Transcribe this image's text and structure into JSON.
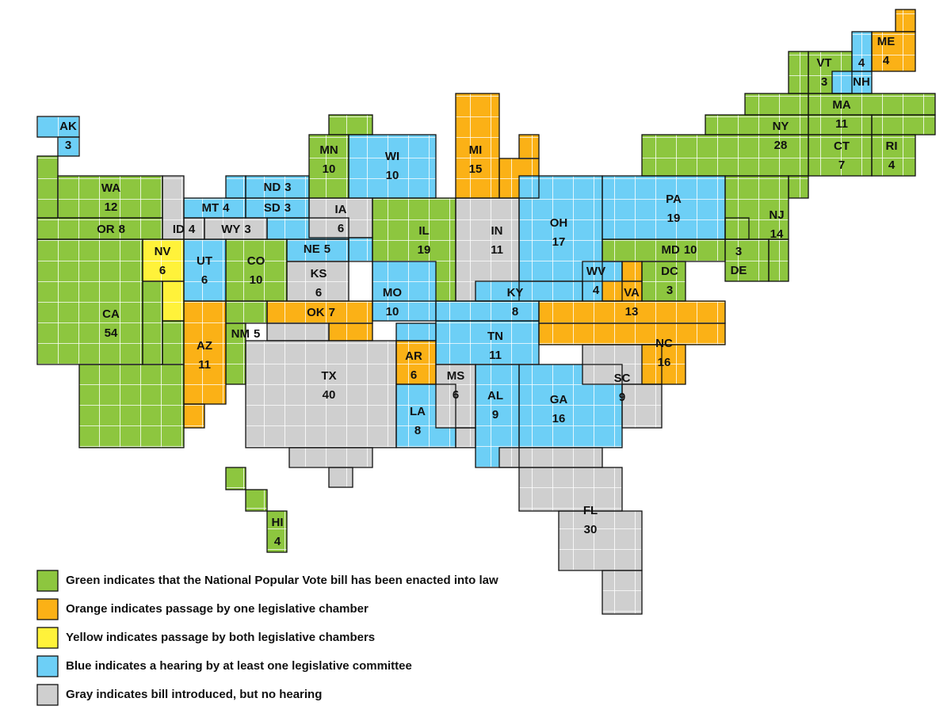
{
  "states": [
    {
      "abbr": "AK",
      "votes": 3,
      "color": "#6dcff6"
    },
    {
      "abbr": "WA",
      "votes": 12,
      "color": "#8dc63f"
    },
    {
      "abbr": "OR",
      "votes": 8,
      "color": "#8dc63f"
    },
    {
      "abbr": "CA",
      "votes": 54,
      "color": "#8dc63f"
    },
    {
      "abbr": "NV",
      "votes": 6,
      "color": "#fff23a"
    },
    {
      "abbr": "ID",
      "votes": 4,
      "color": "#cfcfcf"
    },
    {
      "abbr": "MT",
      "votes": 4,
      "color": "#6dcff6"
    },
    {
      "abbr": "WY",
      "votes": 3,
      "color": "#cfcfcf"
    },
    {
      "abbr": "UT",
      "votes": 6,
      "color": "#6dcff6"
    },
    {
      "abbr": "CO",
      "votes": 10,
      "color": "#8dc63f"
    },
    {
      "abbr": "NM",
      "votes": 5,
      "color": "#8dc63f"
    },
    {
      "abbr": "AZ",
      "votes": 11,
      "color": "#fbb116"
    },
    {
      "abbr": "ND",
      "votes": 3,
      "color": "#6dcff6"
    },
    {
      "abbr": "SD",
      "votes": 3,
      "color": "#6dcff6"
    },
    {
      "abbr": "NE",
      "votes": 5,
      "color": "#6dcff6"
    },
    {
      "abbr": "KS",
      "votes": 6,
      "color": "#cfcfcf"
    },
    {
      "abbr": "OK",
      "votes": 7,
      "color": "#fbb116"
    },
    {
      "abbr": "TX",
      "votes": 40,
      "color": "#cfcfcf"
    },
    {
      "abbr": "MN",
      "votes": 10,
      "color": "#8dc63f"
    },
    {
      "abbr": "WI",
      "votes": 10,
      "color": "#6dcff6"
    },
    {
      "abbr": "IA",
      "votes": 6,
      "color": "#cfcfcf"
    },
    {
      "abbr": "IL",
      "votes": 19,
      "color": "#8dc63f"
    },
    {
      "abbr": "MO",
      "votes": 10,
      "color": "#6dcff6"
    },
    {
      "abbr": "IN",
      "votes": 11,
      "color": "#cfcfcf"
    },
    {
      "abbr": "MI",
      "votes": 15,
      "color": "#fbb116"
    },
    {
      "abbr": "OH",
      "votes": 17,
      "color": "#6dcff6"
    },
    {
      "abbr": "KY",
      "votes": 8,
      "color": "#6dcff6"
    },
    {
      "abbr": "WV",
      "votes": 4,
      "color": "#6dcff6"
    },
    {
      "abbr": "VA",
      "votes": 13,
      "color": "#fbb116"
    },
    {
      "abbr": "DC",
      "votes": 3,
      "color": "#8dc63f"
    },
    {
      "abbr": "MD",
      "votes": 10,
      "color": "#8dc63f"
    },
    {
      "abbr": "DE",
      "votes": 3,
      "color": "#8dc63f"
    },
    {
      "abbr": "PA",
      "votes": 19,
      "color": "#6dcff6"
    },
    {
      "abbr": "NJ",
      "votes": 14,
      "color": "#8dc63f"
    },
    {
      "abbr": "NY",
      "votes": 28,
      "color": "#8dc63f"
    },
    {
      "abbr": "VT",
      "votes": 3,
      "color": "#8dc63f"
    },
    {
      "abbr": "NH",
      "votes": 4,
      "color": "#6dcff6"
    },
    {
      "abbr": "ME",
      "votes": 4,
      "color": "#fbb116"
    },
    {
      "abbr": "MA",
      "votes": 11,
      "color": "#8dc63f"
    },
    {
      "abbr": "CT",
      "votes": 7,
      "color": "#8dc63f"
    },
    {
      "abbr": "RI",
      "votes": 4,
      "color": "#8dc63f"
    },
    {
      "abbr": "TN",
      "votes": 11,
      "color": "#6dcff6"
    },
    {
      "abbr": "AR",
      "votes": 6,
      "color": "#fbb116"
    },
    {
      "abbr": "LA",
      "votes": 8,
      "color": "#6dcff6"
    },
    {
      "abbr": "MS",
      "votes": 6,
      "color": "#cfcfcf"
    },
    {
      "abbr": "AL",
      "votes": 9,
      "color": "#6dcff6"
    },
    {
      "abbr": "GA",
      "votes": 16,
      "color": "#6dcff6"
    },
    {
      "abbr": "SC",
      "votes": 9,
      "color": "#cfcfcf"
    },
    {
      "abbr": "NC",
      "votes": 16,
      "color": "#fbb116"
    },
    {
      "abbr": "FL",
      "votes": 30,
      "color": "#cfcfcf"
    },
    {
      "abbr": "HI",
      "votes": 4,
      "color": "#8dc63f"
    }
  ],
  "legend": [
    {
      "color": "#8dc63f",
      "text": "Green indicates that the National Popular Vote bill has been enacted into law"
    },
    {
      "color": "#fbb116",
      "text": "Orange indicates passage by one legislative chamber"
    },
    {
      "color": "#fff23a",
      "text": "Yellow indicates passage by both legislative chambers"
    },
    {
      "color": "#6dcff6",
      "text": "Blue indicates a hearing by at least one legislative committee"
    },
    {
      "color": "#cfcfcf",
      "text": "Gray indicates bill introduced, but no hearing"
    }
  ]
}
